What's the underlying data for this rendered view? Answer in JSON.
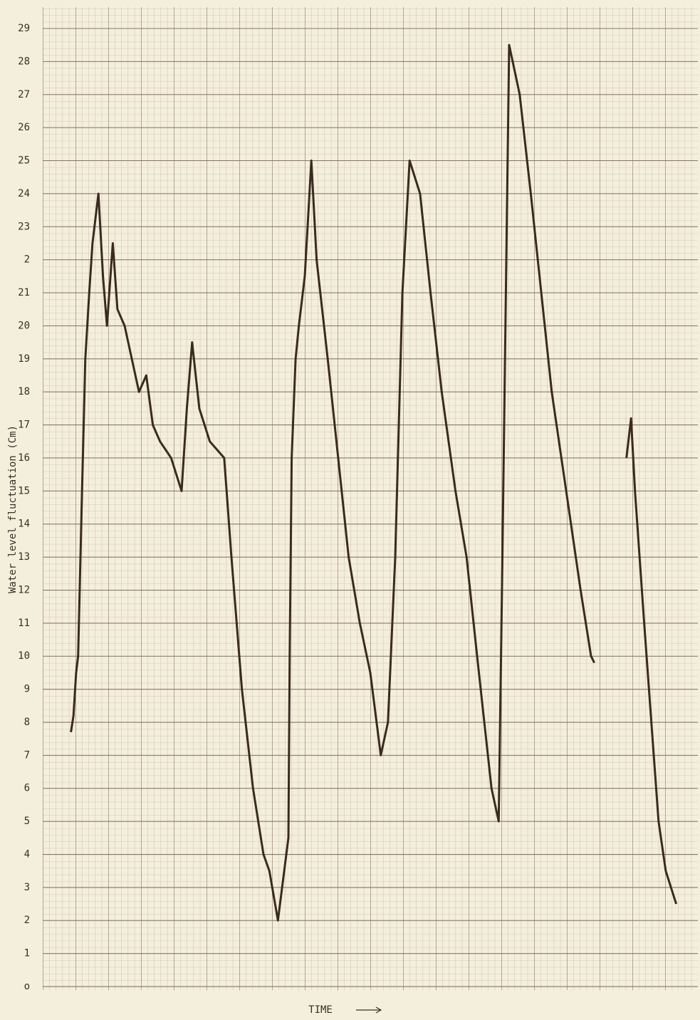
{
  "chart_data": {
    "type": "line",
    "ylabel": "Water level fluctuation (Cm)",
    "xlabel": "TIME",
    "ylim": [
      0,
      29
    ],
    "yticks": [
      {
        "value": 0,
        "label": "o"
      },
      1,
      2,
      3,
      4,
      5,
      6,
      7,
      8,
      9,
      10,
      11,
      12,
      13,
      14,
      15,
      16,
      17,
      18,
      19,
      20,
      21,
      {
        "value": 22,
        "label": "2"
      },
      23,
      24,
      25,
      26,
      27,
      28,
      29
    ],
    "xlim": [
      0,
      100
    ],
    "x": [
      4.3,
      4.7,
      5.1,
      5.4,
      6.0,
      6.5,
      7.1,
      7.6,
      8.5,
      9.2,
      9.8,
      10.7,
      11.4,
      12.5,
      13.6,
      14.7,
      15.8,
      16.8,
      17.9,
      19.6,
      21.2,
      22.0,
      22.8,
      23.9,
      25.5,
      27.7,
      28.8,
      30.4,
      32.1,
      33.7,
      34.6,
      35.9,
      37.5,
      37.7,
      38.0,
      38.6,
      39.1,
      40.0,
      41.0,
      41.8,
      43.5,
      45.1,
      46.7,
      48.4,
      50.0,
      51.6,
      52.7,
      53.8,
      54.9,
      56.0,
      57.6,
      59.2,
      60.9,
      63.0,
      64.7,
      66.3,
      67.4,
      68.5,
      69.6,
      70.1,
      70.7,
      71.2,
      72.8,
      74.5,
      76.1,
      77.7,
      79.9,
      82.1,
      83.7,
      84.2,
      87.0,
      89.1,
      89.8,
      90.4,
      91.8,
      92.9,
      94.0,
      95.1,
      96.7
    ],
    "values": [
      7.7,
      8.2,
      9.5,
      10,
      15,
      19,
      21,
      22.5,
      24,
      21.5,
      20,
      22.5,
      20.5,
      20,
      19,
      18,
      18.5,
      17,
      16.5,
      16,
      15,
      17.5,
      19.5,
      17.5,
      16.5,
      16,
      13,
      9,
      6,
      4,
      3.5,
      2,
      4.5,
      10,
      16,
      19,
      20,
      21.5,
      25,
      22,
      19,
      16,
      13,
      11,
      9.5,
      7,
      8,
      13,
      21,
      25,
      24,
      21,
      18,
      15,
      13,
      10,
      8,
      6,
      5,
      12,
      21,
      28.5,
      27,
      24,
      21,
      18,
      15,
      12,
      10,
      9.8,
      null,
      16,
      17.2,
      15,
      11,
      8,
      5,
      3.5,
      2.5
    ],
    "color": "#3a2a20",
    "grid": true
  }
}
